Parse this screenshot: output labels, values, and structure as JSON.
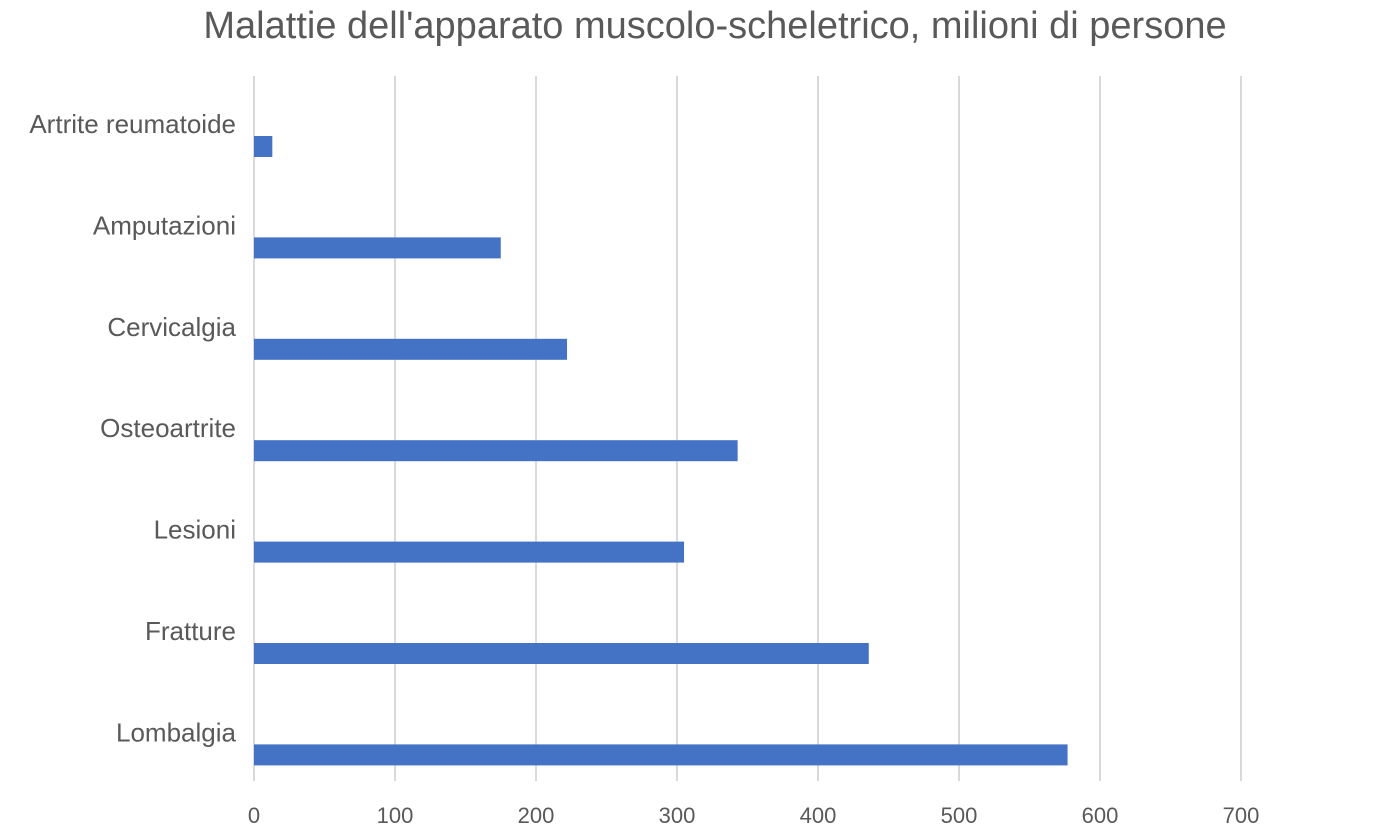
{
  "chart_data": {
    "type": "bar",
    "orientation": "horizontal",
    "title": "Malattie dell'apparato muscolo-scheletrico, milioni di persone",
    "categories": [
      "Artrite reumatoide",
      "Amputazioni",
      "Cervicalgia",
      "Osteoartrite",
      "Lesioni",
      "Fratture",
      "Lombalgia"
    ],
    "values": [
      13,
      175,
      222,
      343,
      305,
      436,
      577
    ],
    "xlabel": "",
    "ylabel": "",
    "xlim": [
      0,
      700
    ],
    "xticks": [
      "0",
      "100",
      "200",
      "300",
      "400",
      "500",
      "600",
      "700"
    ],
    "grid": true,
    "legend": "none",
    "bar_color": "#4472c4",
    "grid_color": "#d9d9d9",
    "text_color": "#595959"
  }
}
